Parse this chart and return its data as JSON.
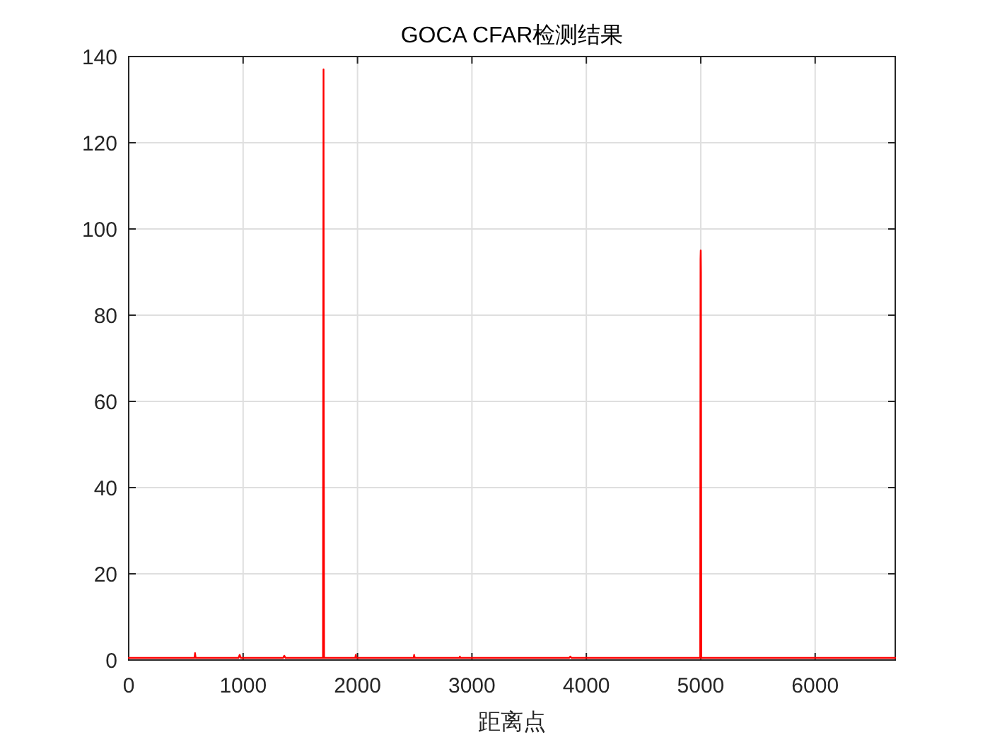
{
  "chart_data": {
    "type": "line",
    "title": "GOCA CFAR检测结果",
    "xlabel": "距离点",
    "x": [
      0,
      575,
      580,
      585,
      960,
      970,
      980,
      1350,
      1360,
      1370,
      1698,
      1700,
      1703,
      1705,
      1708,
      1980,
      1985,
      1990,
      2490,
      2495,
      2500,
      2890,
      2895,
      2900,
      3850,
      3860,
      3870,
      4995,
      4998,
      5000,
      5002,
      5005,
      6700
    ],
    "values": [
      0.5,
      0.5,
      1.6,
      0.5,
      0.5,
      1.2,
      0.5,
      0.5,
      1,
      0.5,
      0.5,
      64,
      137,
      60,
      0.5,
      0.5,
      1.2,
      0.5,
      0.5,
      1.2,
      0.5,
      0.5,
      0.8,
      0.5,
      0.5,
      0.8,
      0.5,
      0.5,
      93,
      95,
      90,
      0.5,
      0.5
    ],
    "color": "#ff0000",
    "xlim": [
      0,
      6700
    ],
    "ylim": [
      0,
      140
    ],
    "xticks": [
      0,
      1000,
      2000,
      3000,
      4000,
      5000,
      6000
    ],
    "yticks": [
      0,
      20,
      40,
      60,
      80,
      100,
      120,
      140
    ],
    "grid": true
  }
}
